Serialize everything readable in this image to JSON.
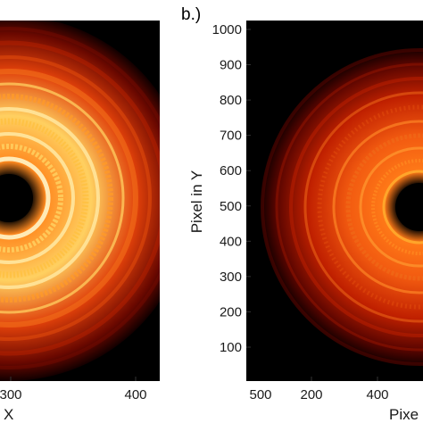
{
  "chart_data": [
    {
      "type": "heatmap",
      "panel_label": "",
      "xlabel": "X",
      "ylabel": "",
      "x_ticks": [
        300,
        400,
        500
      ],
      "x_tick_labels": [
        "300",
        "400",
        "500"
      ],
      "y_ticks": [],
      "grid": false,
      "colormap": "hot",
      "description": "radial ring-pattern intensity image"
    },
    {
      "type": "heatmap",
      "panel_label": "b.)",
      "xlabel": "Pixe",
      "ylabel": "Pixel in Y",
      "x_ticks": [
        200,
        400
      ],
      "x_tick_labels": [
        "200",
        "400"
      ],
      "y_ticks": [
        100,
        200,
        300,
        400,
        500,
        600,
        700,
        800,
        900,
        1000
      ],
      "y_tick_labels": [
        "100",
        "200",
        "300",
        "400",
        "500",
        "600",
        "700",
        "800",
        "900",
        "1000"
      ],
      "ylim": [
        0,
        1024
      ],
      "grid": false,
      "colormap": "hot"
    }
  ],
  "colors": {
    "background": "#000000",
    "dark_red": "#3a0000",
    "red": "#b41200",
    "orange": "#f26a10",
    "yellow": "#ffd060",
    "white_hot": "#fff4c8"
  }
}
